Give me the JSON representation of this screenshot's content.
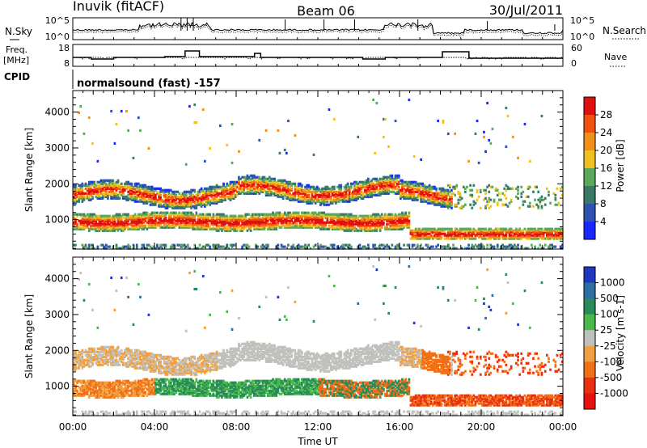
{
  "chart_data": {
    "type": "heatmap",
    "title": "Beam 06",
    "radar": "Inuvik (fitACF)",
    "date": "30/Jul/2011",
    "xlabel": "Time UT",
    "x_ticks": [
      "00:00",
      "04:00",
      "08:00",
      "12:00",
      "16:00",
      "20:00",
      "00:00"
    ],
    "xlim_hours": [
      0,
      24
    ],
    "top_panels": {
      "sky_search": {
        "left_label": "N.Sky",
        "right_label": "N.Search",
        "left_ticks": [
          "10^5",
          "10^0"
        ],
        "right_ticks": [
          "10^5",
          "10^0"
        ]
      },
      "freq_nave": {
        "left_label_1": "Freq.",
        "left_label_2": "[MHz]",
        "right_label": "Nave",
        "left_ticks": [
          "18",
          "8"
        ],
        "right_ticks": [
          "60",
          "0"
        ]
      },
      "cpid": {
        "label": "CPID",
        "text": "normalsound (fast) -157"
      }
    },
    "panels": [
      {
        "name": "power",
        "ylabel": "Slant Range [km]",
        "ylim_km": [
          180,
          4600
        ],
        "y_ticks": [
          1000,
          2000,
          3000,
          4000
        ],
        "colorbar_label": "Power [dB]",
        "colorbar_ticks": [
          "4",
          "8",
          "12",
          "16",
          "20",
          "24",
          "28"
        ],
        "colors": [
          "#1a28ff",
          "#2e52b0",
          "#3a7868",
          "#5aa85a",
          "#f0c020",
          "#f09018",
          "#f05010",
          "#e01010"
        ]
      },
      {
        "name": "velocity",
        "ylabel": "Slant Range [km]",
        "ylim_km": [
          180,
          4600
        ],
        "y_ticks": [
          1000,
          2000,
          3000,
          4000
        ],
        "colorbar_label": "Velocity [m s-1]",
        "colorbar_ticks": [
          "1000",
          "500",
          "100",
          "25",
          "-25",
          "-100",
          "-500",
          "-1000"
        ],
        "colors": [
          "#2038c0",
          "#2f6ea0",
          "#2a8a5a",
          "#4ab84a",
          "#c0c0bc",
          "#f0a040",
          "#f07018",
          "#e83010",
          "#e81010"
        ]
      }
    ]
  }
}
